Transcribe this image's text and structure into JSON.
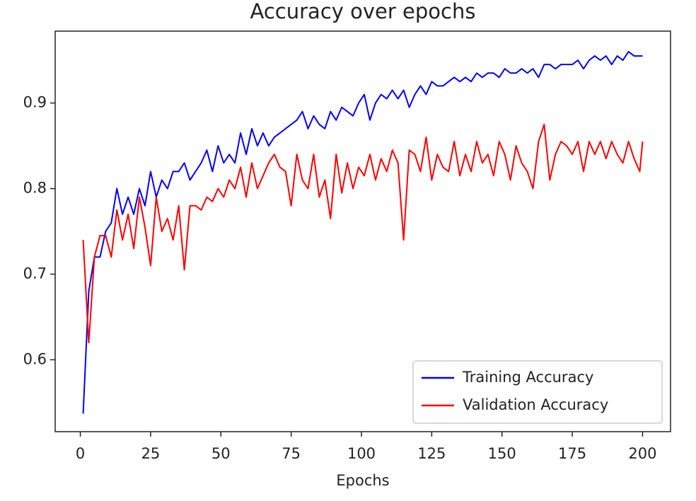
{
  "chart_data": {
    "type": "line",
    "title": "Accuracy over epochs",
    "xlabel": "Epochs",
    "x": [
      1,
      3,
      5,
      7,
      9,
      11,
      13,
      15,
      17,
      19,
      21,
      23,
      25,
      27,
      29,
      31,
      33,
      35,
      37,
      39,
      41,
      43,
      45,
      47,
      49,
      51,
      53,
      55,
      57,
      59,
      61,
      63,
      65,
      67,
      69,
      71,
      73,
      75,
      77,
      79,
      81,
      83,
      85,
      87,
      89,
      91,
      93,
      95,
      97,
      99,
      101,
      103,
      105,
      107,
      109,
      111,
      113,
      115,
      117,
      119,
      121,
      123,
      125,
      127,
      129,
      131,
      133,
      135,
      137,
      139,
      141,
      143,
      145,
      147,
      149,
      151,
      153,
      155,
      157,
      159,
      161,
      163,
      165,
      167,
      169,
      171,
      173,
      175,
      177,
      179,
      181,
      183,
      185,
      187,
      189,
      191,
      193,
      195,
      197,
      199,
      200
    ],
    "series": [
      {
        "name": "Training Accuracy",
        "color": "#0000ff",
        "values": [
          0.537,
          0.68,
          0.72,
          0.72,
          0.75,
          0.76,
          0.8,
          0.77,
          0.79,
          0.77,
          0.8,
          0.78,
          0.82,
          0.79,
          0.81,
          0.8,
          0.82,
          0.82,
          0.83,
          0.81,
          0.82,
          0.83,
          0.845,
          0.82,
          0.85,
          0.83,
          0.84,
          0.83,
          0.865,
          0.84,
          0.87,
          0.85,
          0.865,
          0.85,
          0.86,
          0.865,
          0.87,
          0.875,
          0.88,
          0.89,
          0.87,
          0.885,
          0.875,
          0.87,
          0.89,
          0.88,
          0.895,
          0.89,
          0.885,
          0.9,
          0.91,
          0.88,
          0.9,
          0.91,
          0.905,
          0.915,
          0.905,
          0.915,
          0.895,
          0.91,
          0.92,
          0.91,
          0.925,
          0.92,
          0.92,
          0.925,
          0.93,
          0.925,
          0.93,
          0.925,
          0.935,
          0.93,
          0.935,
          0.935,
          0.93,
          0.94,
          0.935,
          0.935,
          0.94,
          0.935,
          0.94,
          0.93,
          0.945,
          0.945,
          0.94,
          0.945,
          0.945,
          0.945,
          0.95,
          0.94,
          0.95,
          0.955,
          0.95,
          0.955,
          0.945,
          0.955,
          0.95,
          0.96,
          0.955,
          0.955,
          0.955
        ]
      },
      {
        "name": "Validation Accuracy",
        "color": "#ff0000",
        "values": [
          0.74,
          0.62,
          0.72,
          0.745,
          0.745,
          0.72,
          0.775,
          0.74,
          0.77,
          0.73,
          0.79,
          0.755,
          0.71,
          0.79,
          0.75,
          0.765,
          0.74,
          0.78,
          0.705,
          0.78,
          0.78,
          0.775,
          0.79,
          0.785,
          0.8,
          0.79,
          0.81,
          0.8,
          0.825,
          0.79,
          0.83,
          0.8,
          0.815,
          0.83,
          0.84,
          0.825,
          0.82,
          0.78,
          0.84,
          0.81,
          0.8,
          0.84,
          0.79,
          0.81,
          0.765,
          0.84,
          0.795,
          0.83,
          0.8,
          0.825,
          0.815,
          0.84,
          0.81,
          0.835,
          0.82,
          0.845,
          0.83,
          0.74,
          0.845,
          0.84,
          0.82,
          0.86,
          0.81,
          0.84,
          0.825,
          0.82,
          0.855,
          0.815,
          0.84,
          0.82,
          0.855,
          0.83,
          0.84,
          0.815,
          0.855,
          0.84,
          0.81,
          0.85,
          0.83,
          0.82,
          0.8,
          0.855,
          0.875,
          0.81,
          0.84,
          0.855,
          0.85,
          0.84,
          0.855,
          0.82,
          0.855,
          0.84,
          0.855,
          0.835,
          0.855,
          0.84,
          0.83,
          0.855,
          0.835,
          0.82,
          0.855
        ]
      }
    ],
    "xlim": [
      -8.95,
      209.95
    ],
    "xticks": [
      0,
      25,
      50,
      75,
      100,
      125,
      150,
      175,
      200
    ],
    "ylim": [
      0.516,
      0.984
    ],
    "yticks": [
      0.6,
      0.7,
      0.8,
      0.9
    ],
    "grid": false,
    "legend": "lower right"
  }
}
